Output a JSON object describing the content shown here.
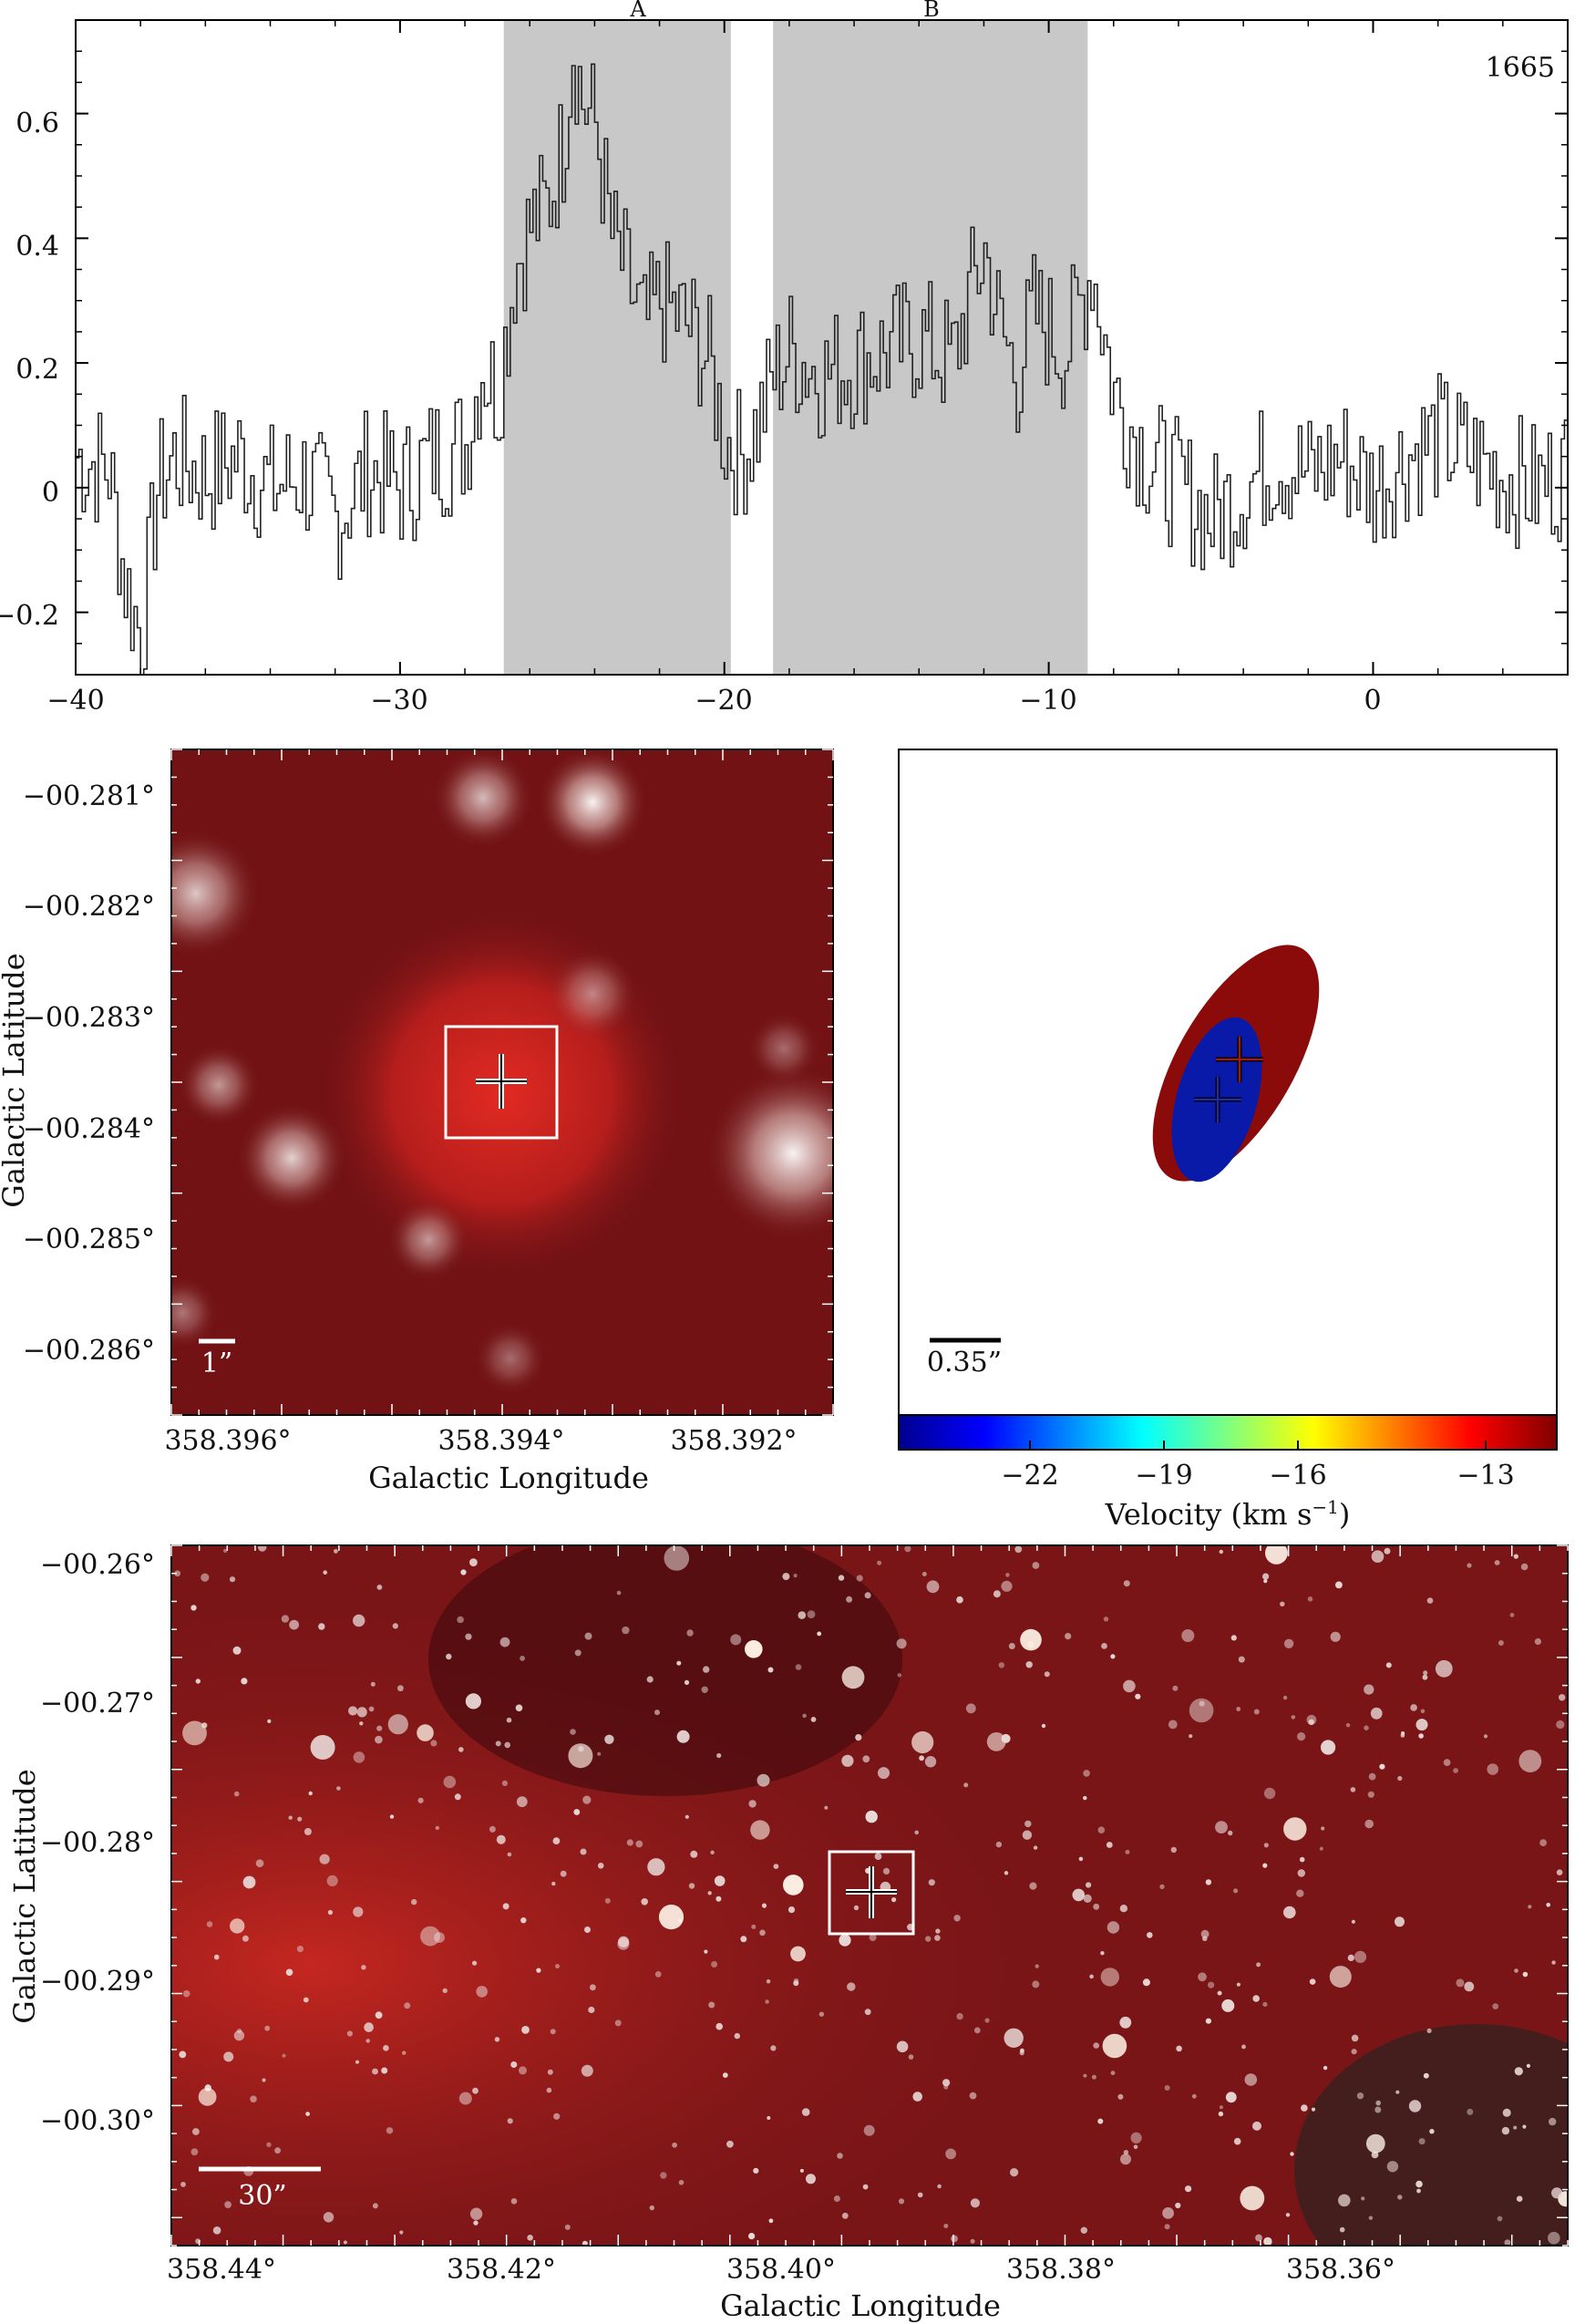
{
  "spectrum": {
    "panel_tag": "1665",
    "region_labels": [
      "A",
      "B"
    ],
    "x_ticks": [
      "−40",
      "−30",
      "−20",
      "−10",
      "0"
    ],
    "y_ticks": [
      "−0.2",
      "0",
      "0.2",
      "0.4",
      "0.6"
    ]
  },
  "chart_data": {
    "type": "line",
    "title": "",
    "xlabel": "",
    "ylabel": "",
    "xlim": [
      -40,
      6
    ],
    "ylim": [
      -0.3,
      0.75
    ],
    "shaded_regions": [
      {
        "label": "A",
        "x": [
          -26.8,
          -19.8
        ]
      },
      {
        "label": "B",
        "x": [
          -18.5,
          -8.8
        ]
      }
    ],
    "series": [
      {
        "style": "step",
        "x": [
          -40,
          -39,
          -38.5,
          -38,
          -37.5,
          -37,
          -36,
          -35,
          -34,
          -33,
          -32,
          -31,
          -30,
          -29,
          -28,
          -27.5,
          -27,
          -26.5,
          -26,
          -25.5,
          -25,
          -24.7,
          -24.4,
          -24,
          -23.5,
          -23,
          -22.5,
          -22,
          -21,
          -20.5,
          -20,
          -19.5,
          -19,
          -18.5,
          -18,
          -17,
          -16,
          -15,
          -14,
          -13,
          -12.5,
          -12,
          -11.5,
          -11,
          -10.5,
          -10,
          -9.5,
          -9,
          -8.7,
          -8,
          -7,
          -6,
          -5,
          -4,
          -3,
          -2,
          -1,
          0,
          1,
          2,
          3,
          4,
          5,
          6
        ],
        "y": [
          0.05,
          0.03,
          -0.15,
          -0.24,
          0.0,
          0.05,
          0.02,
          0.05,
          0.0,
          0.02,
          -0.05,
          0.03,
          0.0,
          0.05,
          0.07,
          0.2,
          0.15,
          0.35,
          0.42,
          0.45,
          0.55,
          0.72,
          0.62,
          0.58,
          0.4,
          0.33,
          0.25,
          0.3,
          0.25,
          0.2,
          0.08,
          0.05,
          0.1,
          0.18,
          0.22,
          0.18,
          0.2,
          0.22,
          0.24,
          0.2,
          0.3,
          0.38,
          0.25,
          0.18,
          0.28,
          0.25,
          0.22,
          0.3,
          0.36,
          0.15,
          0.05,
          0.0,
          -0.05,
          0.0,
          0.05,
          0.02,
          0.05,
          0.0,
          0.05,
          0.08,
          0.05,
          0.02,
          0.0,
          0.03
        ]
      }
    ]
  },
  "zoom_map": {
    "y_ticks": [
      "−00.281°",
      "−00.282°",
      "−00.283°",
      "−00.284°",
      "−00.285°",
      "−00.286°"
    ],
    "x_ticks": [
      "358.396°",
      "358.394°",
      "358.392°"
    ],
    "xlabel": "Galactic Longitude",
    "ylabel": "Galactic Latitude",
    "scalebar_label": "1”"
  },
  "maser_panel": {
    "scalebar_label": "0.35”",
    "colorbar_ticks": [
      "−22",
      "−19",
      "−16",
      "−13"
    ],
    "colorbar_label": "Velocity (km s",
    "colorbar_label_sup": "−1",
    "colorbar_label_end": ")"
  },
  "wide_map": {
    "y_ticks": [
      "−00.26°",
      "−00.27°",
      "−00.28°",
      "−00.29°",
      "−00.30°"
    ],
    "x_ticks": [
      "358.44°",
      "358.42°",
      "358.40°",
      "358.38°",
      "358.36°"
    ],
    "xlabel": "Galactic Longitude",
    "ylabel": "Galactic Latitude",
    "scalebar_label": "30”"
  },
  "colors": {
    "shade": "#c8c8c8",
    "map_dark": "#5a0c10",
    "map_red": "#8a1a1c",
    "ellipse_red": "#8b0a0a",
    "ellipse_blue": "#0a1aa8"
  }
}
